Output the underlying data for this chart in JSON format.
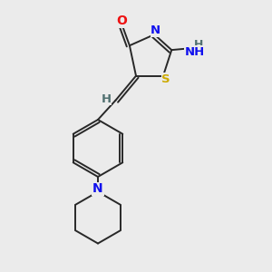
{
  "bg_color": "#ebebeb",
  "bond_color": "#282828",
  "atom_colors": {
    "O": "#ee1111",
    "N": "#1111ee",
    "S": "#ccaa00",
    "C": "#282828",
    "H": "#507070"
  },
  "font_size": 9.5,
  "bond_width": 1.4,
  "xlim": [
    0,
    10
  ],
  "ylim": [
    0,
    10
  ]
}
